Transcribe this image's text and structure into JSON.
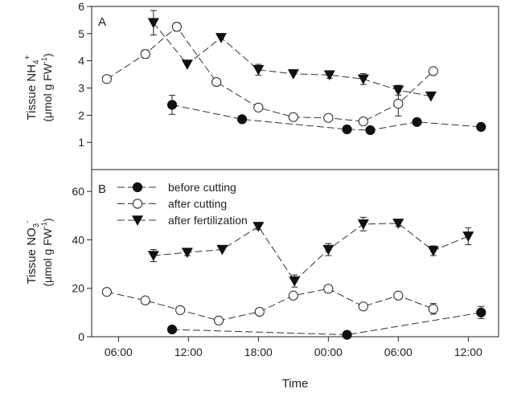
{
  "chart_data": [
    {
      "type": "line",
      "panel_label": "A",
      "ylabel_line1": "Tissue NH",
      "ylabel_sub": "4",
      "ylabel_sup": "+",
      "ylabel_line2_pre": "(μmol g FW",
      "ylabel_line2_sup": "-1",
      "ylabel_line2_post": ")",
      "ylim": [
        0,
        6
      ],
      "yticks": [
        1,
        2,
        3,
        4,
        5,
        6
      ],
      "grid": false,
      "series": [
        {
          "name": "before cutting",
          "marker": "filled-circle",
          "x": [
            10.6,
            16.6,
            25.6,
            27.6,
            31.6,
            37.1
          ],
          "y": [
            2.38,
            1.85,
            1.48,
            1.45,
            1.75,
            1.57
          ],
          "err": [
            0.35,
            0,
            0,
            0,
            0,
            0
          ]
        },
        {
          "name": "after cutting",
          "marker": "open-circle",
          "x": [
            5.0,
            8.3,
            11.0,
            14.4,
            18.0,
            21.0,
            24.0,
            27.0,
            30.0,
            33.0
          ],
          "y": [
            3.33,
            4.25,
            5.25,
            3.22,
            2.28,
            1.93,
            1.9,
            1.77,
            2.42,
            3.62
          ],
          "err": [
            0,
            0.15,
            0.15,
            0,
            0,
            0,
            0,
            0.05,
            0.45,
            0
          ]
        },
        {
          "name": "after fertilization",
          "marker": "filled-triangle-down",
          "x": [
            9.0,
            11.9,
            14.8,
            18.0,
            21.0,
            24.1,
            27.0,
            30.0,
            32.8
          ],
          "y": [
            5.4,
            3.87,
            4.85,
            3.67,
            3.52,
            3.48,
            3.33,
            2.92,
            2.7
          ],
          "err": [
            0.45,
            0,
            0,
            0.2,
            0,
            0.12,
            0.2,
            0.18,
            0
          ]
        }
      ]
    },
    {
      "type": "line",
      "panel_label": "B",
      "ylabel_line1": "Tissue NO",
      "ylabel_sub": "3",
      "ylabel_sup": "-",
      "ylabel_line2_pre": "(μmol g FW",
      "ylabel_line2_sup": "-1",
      "ylabel_line2_post": ")",
      "ylim": [
        0,
        69
      ],
      "yticks": [
        0,
        20,
        40,
        60
      ],
      "grid": false,
      "legend_position": "top-left",
      "series": [
        {
          "name": "before cutting",
          "marker": "filled-circle",
          "x": [
            10.6,
            25.6,
            37.1
          ],
          "y": [
            3.0,
            0.8,
            10.0
          ],
          "err": [
            0,
            0,
            2.5
          ]
        },
        {
          "name": "after cutting",
          "marker": "open-circle",
          "x": [
            5.0,
            8.3,
            11.3,
            14.6,
            18.1,
            21.0,
            24.0,
            27.0,
            30.0,
            33.0
          ],
          "y": [
            18.5,
            15.0,
            11.0,
            6.7,
            10.3,
            17.0,
            19.8,
            12.5,
            17.0,
            11.5
          ],
          "err": [
            0,
            0,
            0,
            1.3,
            0,
            0,
            0,
            0,
            0,
            2.2
          ]
        },
        {
          "name": "after fertilization",
          "marker": "filled-triangle-down",
          "x": [
            9.0,
            11.9,
            14.9,
            18.0,
            21.1,
            24.0,
            27.0,
            30.0,
            33.0,
            36.0
          ],
          "y": [
            33.5,
            34.8,
            36.0,
            45.5,
            23.0,
            36.0,
            46.5,
            46.8,
            35.5,
            41.5
          ],
          "err": [
            2.5,
            1.3,
            0,
            1.3,
            2.5,
            2.5,
            2.8,
            1.3,
            2.0,
            3.5
          ]
        }
      ]
    }
  ],
  "shared_x": {
    "xlabel": "Time",
    "xlim": [
      3.7,
      38.6
    ],
    "tick_values": [
      6,
      12,
      18,
      24,
      30,
      36
    ],
    "tick_labels": [
      "06:00",
      "12:00",
      "18:00",
      "00:00",
      "06:00",
      "12:00"
    ]
  },
  "legend": {
    "entries": [
      "before cutting",
      "after cutting",
      "after fertilization"
    ]
  }
}
